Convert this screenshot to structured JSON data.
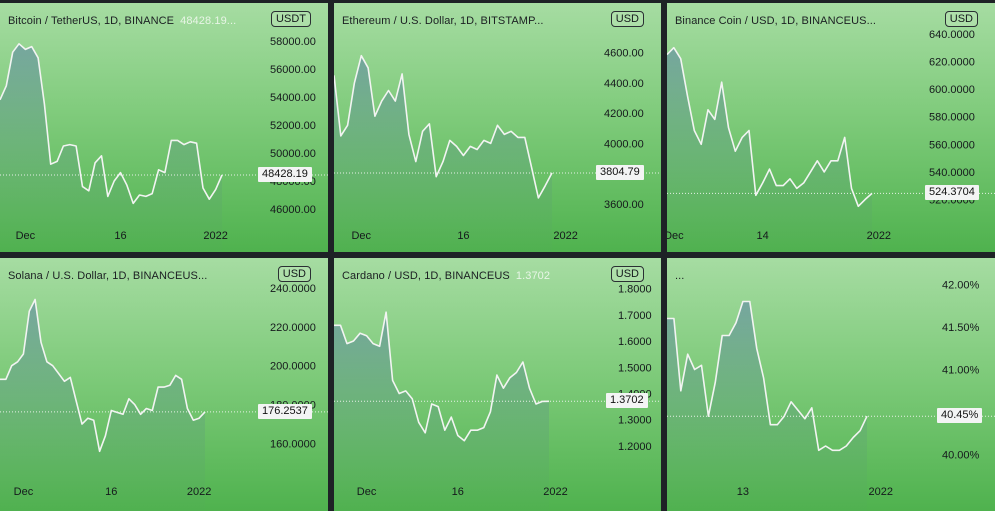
{
  "panels": [
    {
      "title": "Bitcoin / TetherUS, 1D, BINANCE",
      "title_value": "48428.19...",
      "currency": "USDT",
      "price_label": "48428.19",
      "y_ticks": [
        "58000.00",
        "56000.00",
        "54000.00",
        "52000.00",
        "50000.00",
        "48000.00",
        "46000.00"
      ],
      "x_ticks": [
        "Dec",
        "16",
        "2022"
      ]
    },
    {
      "title": "Ethereum / U.S. Dollar, 1D, BITSTAMP...",
      "title_value": "",
      "currency": "USD",
      "price_label": "3804.79",
      "y_ticks": [
        "4600.00",
        "4400.00",
        "4200.00",
        "4000.00",
        "3800.00",
        "3600.00"
      ],
      "x_ticks": [
        "Dec",
        "16",
        "2022"
      ]
    },
    {
      "title": "Binance Coin / USD, 1D, BINANCEUS...",
      "title_value": "",
      "currency": "USD",
      "price_label": "524.3704",
      "y_ticks": [
        "640.0000",
        "620.0000",
        "600.0000",
        "580.0000",
        "560.0000",
        "540.0000",
        "520.0000"
      ],
      "x_ticks": [
        "Dec",
        "14",
        "2022"
      ]
    },
    {
      "title": "Solana / U.S. Dollar, 1D, BINANCEUS...",
      "title_value": "",
      "currency": "USD",
      "price_label": "176.2537",
      "y_ticks": [
        "240.0000",
        "220.0000",
        "200.0000",
        "180.0000",
        "160.0000"
      ],
      "x_ticks": [
        "Dec",
        "16",
        "2022"
      ]
    },
    {
      "title": "Cardano / USD, 1D, BINANCEUS",
      "title_value": "1.3702",
      "currency": "USD",
      "price_label": "1.3702",
      "y_ticks": [
        "1.8000",
        "1.7000",
        "1.6000",
        "1.5000",
        "1.4000",
        "1.3000",
        "1.2000"
      ],
      "x_ticks": [
        "Dec",
        "16",
        "2022"
      ]
    },
    {
      "title": "...",
      "title_value": "",
      "currency": "",
      "price_label": "40.45%",
      "y_ticks": [
        "42.00%",
        "41.50%",
        "41.00%",
        "40.50%",
        "40.00%"
      ],
      "x_ticks": [
        "13",
        "2022"
      ]
    }
  ],
  "chart_data": [
    {
      "type": "area",
      "title": "Bitcoin / TetherUS, 1D, BINANCE",
      "ylim": [
        45500,
        59000
      ],
      "y_ticks": [
        58000,
        56000,
        54000,
        52000,
        50000,
        48000,
        46000
      ],
      "x_ticks": [
        {
          "label": "Dec",
          "index": 4
        },
        {
          "label": "16",
          "index": 19
        },
        {
          "label": "2022",
          "index": 34
        }
      ],
      "last_price": 48428.19,
      "series": [
        {
          "values": [
            53800,
            54800,
            57200,
            57800,
            57400,
            57600,
            56800,
            53500,
            49200,
            49400,
            50500,
            50600,
            50500,
            47600,
            47300,
            49300,
            49800,
            46900,
            48000,
            48600,
            47700,
            46400,
            47000,
            46900,
            47100,
            48800,
            48600,
            50900,
            50900,
            50600,
            50800,
            50700,
            47500,
            46700,
            47400,
            48428
          ]
        }
      ]
    },
    {
      "type": "area",
      "title": "Ethereum / U.S. Dollar, 1D, BITSTAMP",
      "ylim": [
        3520,
        4770
      ],
      "y_ticks": [
        4600,
        4400,
        4200,
        4000,
        3800,
        3600
      ],
      "x_ticks": [
        {
          "label": "Dec",
          "index": 4
        },
        {
          "label": "16",
          "index": 19
        },
        {
          "label": "2022",
          "index": 34
        }
      ],
      "last_price": 3804.79,
      "series": [
        {
          "values": [
            4450,
            4050,
            4120,
            4400,
            4580,
            4500,
            4180,
            4280,
            4350,
            4280,
            4460,
            4060,
            3880,
            4080,
            4130,
            3780,
            3880,
            4020,
            3980,
            3920,
            3980,
            3960,
            4020,
            4000,
            4120,
            4060,
            4080,
            4040,
            4040,
            3840,
            3640,
            3720,
            3804.79
          ]
        }
      ]
    },
    {
      "type": "area",
      "title": "Binance Coin / USD, 1D, BINANCEUS",
      "ylim": [
        508,
        645
      ],
      "y_ticks": [
        640,
        620,
        600,
        580,
        560,
        540,
        520
      ],
      "x_ticks": [
        {
          "label": "Dec",
          "index": 1
        },
        {
          "label": "14",
          "index": 14
        },
        {
          "label": "2022",
          "index": 31
        }
      ],
      "last_price": 524.3704,
      "series": [
        {
          "values": [
            625,
            630,
            622,
            595,
            570,
            560,
            585,
            578,
            605,
            572,
            555,
            565,
            570,
            523,
            532,
            542,
            530,
            530,
            535,
            528,
            532,
            540,
            548,
            540,
            548,
            548,
            565,
            528,
            515,
            520,
            524.37
          ]
        }
      ]
    },
    {
      "type": "area",
      "title": "Solana / U.S. Dollar, 1D, BINANCEUS",
      "ylim": [
        150,
        243
      ],
      "y_ticks": [
        240,
        220,
        200,
        180,
        160
      ],
      "x_ticks": [
        {
          "label": "Dec",
          "index": 4
        },
        {
          "label": "16",
          "index": 19
        },
        {
          "label": "2022",
          "index": 34
        }
      ],
      "last_price": 176.2537,
      "series": [
        {
          "values": [
            193,
            193,
            200,
            202,
            206,
            228,
            234,
            212,
            202,
            200,
            196,
            192,
            194,
            182,
            170,
            173,
            172,
            156,
            164,
            177,
            176,
            175,
            183,
            180,
            175,
            178,
            177,
            189,
            189,
            190,
            195,
            193,
            178,
            172,
            173,
            176.25
          ]
        }
      ]
    },
    {
      "type": "area",
      "title": "Cardano / USD, 1D, BINANCEUS",
      "ylim": [
        1.135,
        1.825
      ],
      "y_ticks": [
        1.8,
        1.7,
        1.6,
        1.5,
        1.4,
        1.3,
        1.2
      ],
      "x_ticks": [
        {
          "label": "Dec",
          "index": 5
        },
        {
          "label": "16",
          "index": 19
        },
        {
          "label": "2022",
          "index": 34
        }
      ],
      "last_price": 1.3702,
      "series": [
        {
          "values": [
            1.66,
            1.66,
            1.59,
            1.6,
            1.63,
            1.62,
            1.59,
            1.58,
            1.71,
            1.45,
            1.4,
            1.41,
            1.38,
            1.29,
            1.25,
            1.36,
            1.35,
            1.26,
            1.31,
            1.24,
            1.22,
            1.26,
            1.26,
            1.27,
            1.33,
            1.47,
            1.42,
            1.46,
            1.48,
            1.52,
            1.42,
            1.36,
            1.37,
            1.3702
          ]
        }
      ]
    },
    {
      "type": "area",
      "title": "",
      "ylim": [
        39.9,
        42.1
      ],
      "y_ticks": [
        42.0,
        41.5,
        41.0,
        40.5,
        40.0
      ],
      "x_ticks": [
        {
          "label": "13",
          "index": 11
        },
        {
          "label": "2022",
          "index": 31
        }
      ],
      "last_price": 40.45,
      "series": [
        {
          "values": [
            41.6,
            41.6,
            40.75,
            41.18,
            41.0,
            41.05,
            40.45,
            40.85,
            41.4,
            41.4,
            41.55,
            41.8,
            41.8,
            41.25,
            40.9,
            40.35,
            40.35,
            40.45,
            40.62,
            40.52,
            40.42,
            40.55,
            40.05,
            40.1,
            40.05,
            40.05,
            40.1,
            40.2,
            40.28,
            40.45
          ]
        }
      ]
    }
  ]
}
